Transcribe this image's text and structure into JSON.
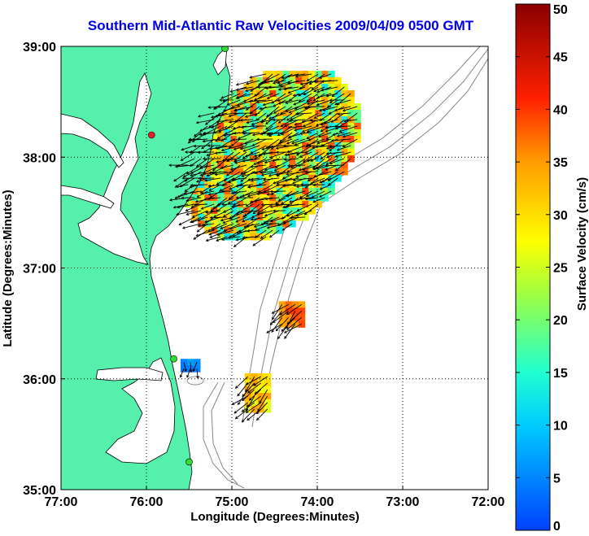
{
  "title": "Southern Mid-Atlantic Raw Velocities 2009/04/09 0500 GMT",
  "xlabel": "Longitude (Degrees:Minutes)",
  "ylabel": "Latitude (Degrees:Minutes)",
  "colorbar": {
    "label": "Surface Velocity (cm/s)",
    "range": [
      0,
      50
    ],
    "tick_values": [
      0,
      5,
      10,
      15,
      20,
      25,
      30,
      35,
      40,
      45,
      50
    ],
    "tick_labels": [
      "0",
      "5",
      "10",
      "15",
      "20",
      "25",
      "30",
      "35",
      "40",
      "45",
      "50"
    ]
  },
  "map": {
    "lon_range": [
      -77,
      -72
    ],
    "lat_range": [
      35,
      39
    ],
    "x_ticks": [
      {
        "value": -77,
        "label": "77:00"
      },
      {
        "value": -76,
        "label": "76:00"
      },
      {
        "value": -75,
        "label": "75:00"
      },
      {
        "value": -74,
        "label": "74:00"
      },
      {
        "value": -73,
        "label": "73:00"
      },
      {
        "value": -72,
        "label": "72:00"
      }
    ],
    "y_ticks": [
      {
        "value": 35,
        "label": "35:00"
      },
      {
        "value": 36,
        "label": "36:00"
      },
      {
        "value": 37,
        "label": "37:00"
      },
      {
        "value": 38,
        "label": "38:00"
      },
      {
        "value": 39,
        "label": "39:00"
      }
    ],
    "grid": "dotted",
    "colors": {
      "land": "#55f0ac",
      "coast": "#000000",
      "bathymetry": "#888888",
      "grid": "#000000",
      "vector": "#000000"
    },
    "stations": [
      {
        "lon": -75.94,
        "lat": 38.2,
        "color": "#e0202a"
      },
      {
        "lon": -75.08,
        "lat": 38.98,
        "color": "#33dd33"
      },
      {
        "lon": -75.68,
        "lat": 36.18,
        "color": "#33dd33"
      },
      {
        "lon": -75.5,
        "lat": 35.25,
        "color": "#33dd33"
      }
    ],
    "velocity_fields": [
      {
        "name": "main-field",
        "lon": [
          -75.55,
          -73.5
        ],
        "lat": [
          37.3,
          38.78
        ],
        "speed_range": [
          12,
          40
        ],
        "direction": "west-southwest"
      },
      {
        "name": "cape-hatteras-cluster",
        "lon": [
          -74.45,
          -74.15
        ],
        "lat": [
          36.5,
          36.7
        ],
        "speed_range": [
          32,
          40
        ],
        "direction": "southwest"
      },
      {
        "name": "hatteras-south-cluster",
        "lon": [
          -74.85,
          -74.6
        ],
        "lat": [
          35.75,
          36.05
        ],
        "speed_range": [
          25,
          35
        ],
        "direction": "southwest"
      },
      {
        "name": "nearshore-low-cluster",
        "lon": [
          -75.6,
          -75.4
        ],
        "lat": [
          36.1,
          36.18
        ],
        "speed_range": [
          4,
          7
        ],
        "direction": "south"
      }
    ]
  }
}
